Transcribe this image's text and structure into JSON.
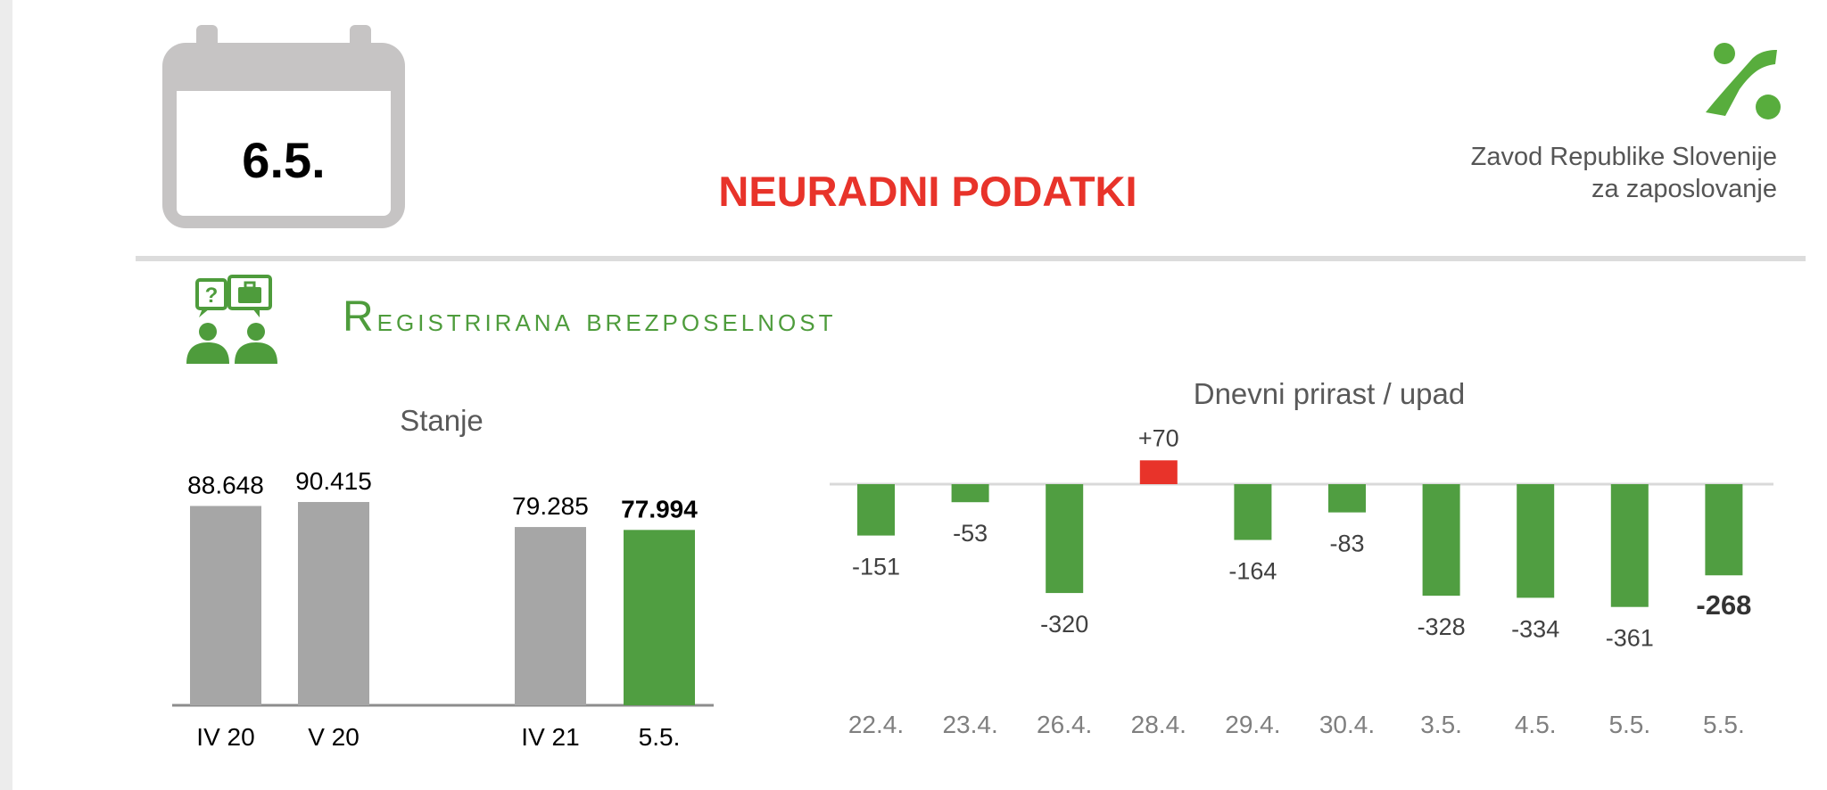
{
  "header": {
    "date": "6.5.",
    "title": "NEURADNI PODATKI",
    "org_line1": "Zavod Republike Slovenije",
    "org_line2": "za zaposlovanje"
  },
  "section": {
    "title": "Registrirana brezposelnost"
  },
  "colors": {
    "green": "#509e41",
    "gray": "#a6a6a6",
    "red": "#e8332a",
    "title_red": "#e8332a"
  },
  "icons": [
    "calendar-icon",
    "zrsz-logo",
    "people-chat-icon"
  ],
  "chart_data": [
    {
      "type": "bar",
      "title": "Stanje",
      "categories": [
        "IV 20",
        "V 20",
        "IV 21",
        "5.5."
      ],
      "values": [
        88648,
        90415,
        79285,
        77994
      ],
      "labels": [
        "88.648",
        "90.415",
        "79.285",
        "77.994"
      ],
      "highlight_index": 3,
      "ylim": [
        0,
        90415
      ],
      "grid": false
    },
    {
      "type": "bar",
      "title": "Dnevni prirast / upad",
      "categories": [
        "22.4.",
        "23.4.",
        "26.4.",
        "28.4.",
        "29.4.",
        "30.4.",
        "3.5.",
        "4.5.",
        "5.5.",
        "5.5."
      ],
      "values": [
        -151,
        -53,
        -320,
        70,
        -164,
        -83,
        -328,
        -334,
        -361,
        -268
      ],
      "labels": [
        "-151",
        "-53",
        "-320",
        "+70",
        "-164",
        "-83",
        "-328",
        "-334",
        "-361",
        "-268"
      ],
      "highlight_index": 9,
      "ylim": [
        -361,
        70
      ],
      "grid": false
    }
  ]
}
